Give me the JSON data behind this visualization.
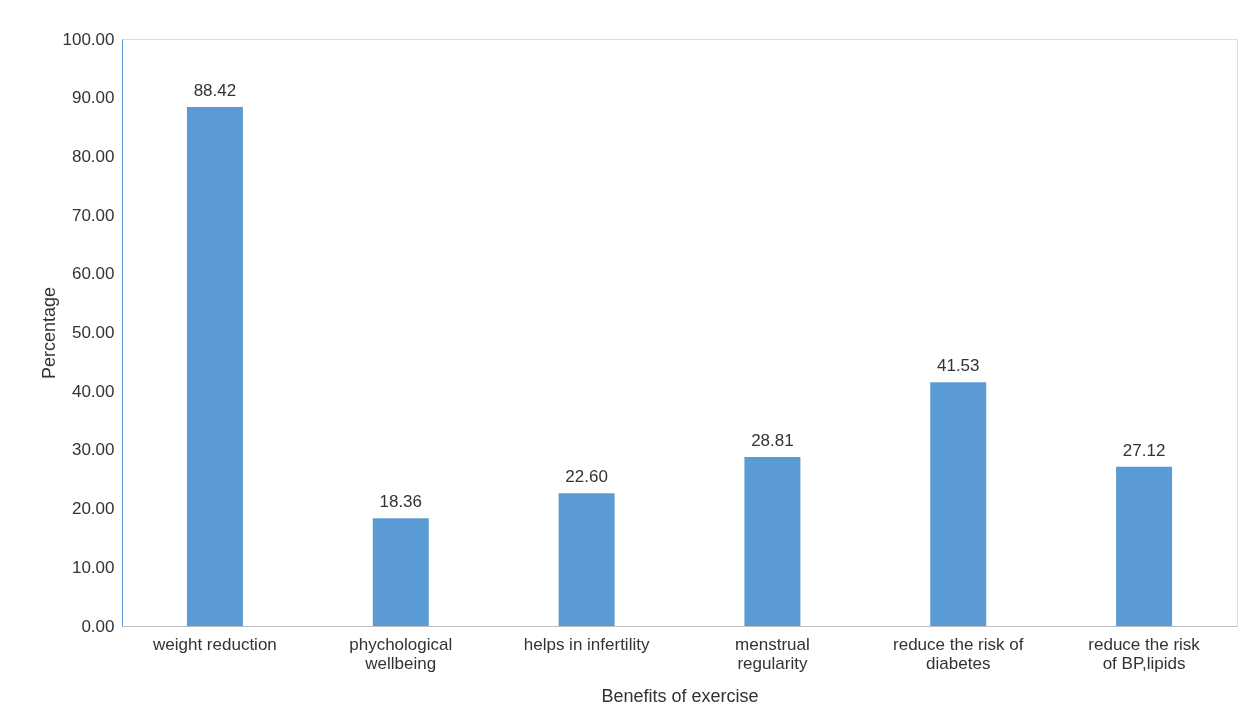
{
  "chart_data": {
    "type": "bar",
    "xlabel": "Benefits of exercise",
    "ylabel": "Percentage",
    "categories": [
      "weight reduction",
      "phychological\nwellbeing",
      "helps in infertility",
      "menstrual\nregularity",
      "reduce the risk of\ndiabetes",
      "reduce the risk\nof BP,lipids"
    ],
    "values": [
      88.42,
      18.36,
      22.6,
      28.81,
      41.53,
      27.12
    ],
    "color": "#5b9bd5",
    "ylim": [
      0,
      100
    ],
    "yticks": [
      {
        "value": 0,
        "label": "0.00"
      },
      {
        "value": 10,
        "label": "10.00"
      },
      {
        "value": 20,
        "label": "20.00"
      },
      {
        "value": 30,
        "label": "30.00"
      },
      {
        "value": 40,
        "label": "40.00"
      },
      {
        "value": 50,
        "label": "50.00"
      },
      {
        "value": 60,
        "label": "60.00"
      },
      {
        "value": 70,
        "label": "70.00"
      },
      {
        "value": 80,
        "label": "80.00"
      },
      {
        "value": 90,
        "label": "90.00"
      },
      {
        "value": 100,
        "label": "100.00"
      }
    ],
    "value_labels": [
      "88.42",
      "18.36",
      "22.60",
      "28.81",
      "41.53",
      "27.12"
    ],
    "grid": false
  }
}
